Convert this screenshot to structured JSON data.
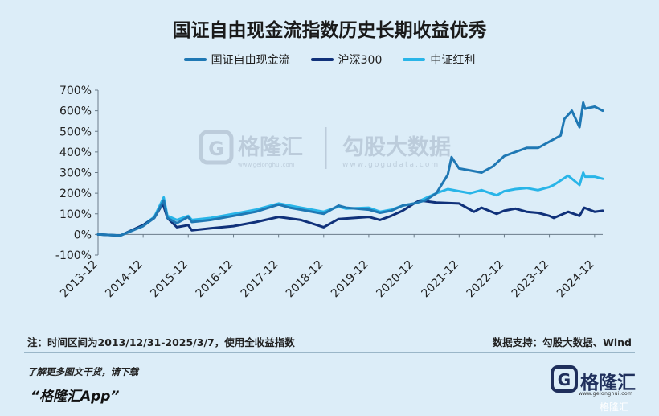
{
  "title": "国证自由现金流指数历史长期收益优秀",
  "colors": {
    "background": "#dcedf8",
    "series1": "#1f78b4",
    "series2": "#10317a",
    "series3": "#29b5e8"
  },
  "watermark": {
    "brand_cn": "格隆汇",
    "brand_url": "www.gelonghui.com",
    "partner_cn": "勾股大数据",
    "partner_url": "www.gogudata.com"
  },
  "footer": {
    "note": "注：时间区间为2013/12/31-2025/3/7，使用全收益指数",
    "source": "数据支持：勾股大数据、Wind",
    "promo_line": "了解更多图文干货，请下载",
    "promo_app": "“格隆汇App”",
    "brand_name": "格隆汇",
    "brand_url": "www.gelonghui.com",
    "corner_watermark": "格隆汇"
  },
  "chart_data": {
    "type": "line",
    "title": "国证自由现金流指数历史长期收益优秀",
    "xlabel": "",
    "ylabel": "",
    "x_tick_labels": [
      "2013-12",
      "2014-12",
      "2015-12",
      "2016-12",
      "2017-12",
      "2018-12",
      "2019-12",
      "2020-12",
      "2021-12",
      "2022-12",
      "2023-12",
      "2024-12"
    ],
    "y_tick_labels": [
      "700%",
      "600%",
      "500%",
      "400%",
      "300%",
      "200%",
      "100%",
      "0%",
      "-100%"
    ],
    "ylim": [
      -100,
      700
    ],
    "xlim": [
      "2013-12-31",
      "2025-03-07"
    ],
    "grid": false,
    "legend_position": "top-center",
    "series": [
      {
        "name": "国证自由现金流",
        "color": "#1f78b4",
        "x": [
          "2013-12-31",
          "2014-06-30",
          "2014-12-31",
          "2015-03-31",
          "2015-06-15",
          "2015-07-15",
          "2015-09-30",
          "2015-12-31",
          "2016-01-29",
          "2016-06-30",
          "2016-12-31",
          "2017-06-30",
          "2017-12-31",
          "2018-03-31",
          "2018-06-30",
          "2018-12-31",
          "2019-04-30",
          "2019-06-30",
          "2019-12-31",
          "2020-03-31",
          "2020-06-30",
          "2020-09-30",
          "2020-12-31",
          "2021-03-31",
          "2021-06-30",
          "2021-09-30",
          "2021-10-31",
          "2021-12-31",
          "2022-03-31",
          "2022-06-30",
          "2022-09-30",
          "2022-12-31",
          "2023-03-31",
          "2023-06-30",
          "2023-09-30",
          "2023-12-31",
          "2024-03-31",
          "2024-04-30",
          "2024-06-30",
          "2024-08-31",
          "2024-09-30",
          "2024-10-15",
          "2024-12-31",
          "2025-03-07"
        ],
        "values": [
          0,
          -5,
          40,
          80,
          165,
          80,
          55,
          85,
          60,
          70,
          90,
          110,
          145,
          130,
          120,
          100,
          140,
          130,
          120,
          105,
          115,
          140,
          150,
          165,
          200,
          290,
          375,
          320,
          310,
          300,
          330,
          380,
          400,
          420,
          420,
          450,
          480,
          560,
          600,
          520,
          640,
          610,
          620,
          600
        ]
      },
      {
        "name": "沪深300",
        "color": "#10317a",
        "x": [
          "2013-12-31",
          "2014-06-30",
          "2014-12-31",
          "2015-03-31",
          "2015-06-08",
          "2015-07-15",
          "2015-09-30",
          "2015-12-31",
          "2016-01-29",
          "2016-06-30",
          "2016-12-31",
          "2017-06-30",
          "2017-12-31",
          "2018-06-30",
          "2018-12-31",
          "2019-04-30",
          "2019-12-31",
          "2020-03-31",
          "2020-06-30",
          "2020-09-30",
          "2020-12-31",
          "2021-02-15",
          "2021-06-30",
          "2021-12-31",
          "2022-04-30",
          "2022-06-30",
          "2022-10-31",
          "2022-12-31",
          "2023-03-31",
          "2023-06-30",
          "2023-09-30",
          "2023-12-31",
          "2024-02-05",
          "2024-05-31",
          "2024-08-31",
          "2024-10-08",
          "2024-12-31",
          "2025-03-07"
        ],
        "values": [
          0,
          -5,
          45,
          80,
          150,
          80,
          35,
          45,
          20,
          30,
          40,
          60,
          85,
          70,
          35,
          75,
          85,
          70,
          90,
          115,
          150,
          165,
          155,
          150,
          110,
          130,
          100,
          115,
          125,
          110,
          105,
          90,
          80,
          110,
          90,
          130,
          110,
          115
        ]
      },
      {
        "name": "中证红利",
        "color": "#29b5e8",
        "x": [
          "2013-12-31",
          "2014-06-30",
          "2014-12-31",
          "2015-03-31",
          "2015-06-15",
          "2015-07-15",
          "2015-09-30",
          "2015-12-31",
          "2016-01-29",
          "2016-06-30",
          "2016-12-31",
          "2017-06-30",
          "2017-12-31",
          "2018-03-31",
          "2018-06-30",
          "2018-12-31",
          "2019-04-30",
          "2019-06-30",
          "2019-12-31",
          "2020-03-31",
          "2020-06-30",
          "2020-09-30",
          "2020-12-31",
          "2021-03-31",
          "2021-06-30",
          "2021-09-30",
          "2021-12-31",
          "2022-03-31",
          "2022-06-30",
          "2022-10-31",
          "2022-12-31",
          "2023-03-31",
          "2023-06-30",
          "2023-09-30",
          "2023-12-31",
          "2024-02-05",
          "2024-05-31",
          "2024-08-31",
          "2024-09-30",
          "2024-10-15",
          "2024-12-31",
          "2025-03-07"
        ],
        "values": [
          0,
          -5,
          45,
          85,
          180,
          90,
          70,
          90,
          70,
          80,
          100,
          120,
          150,
          140,
          130,
          110,
          135,
          125,
          130,
          110,
          120,
          140,
          150,
          175,
          200,
          220,
          210,
          200,
          215,
          190,
          210,
          220,
          225,
          215,
          230,
          240,
          285,
          240,
          300,
          280,
          280,
          270
        ]
      }
    ]
  }
}
